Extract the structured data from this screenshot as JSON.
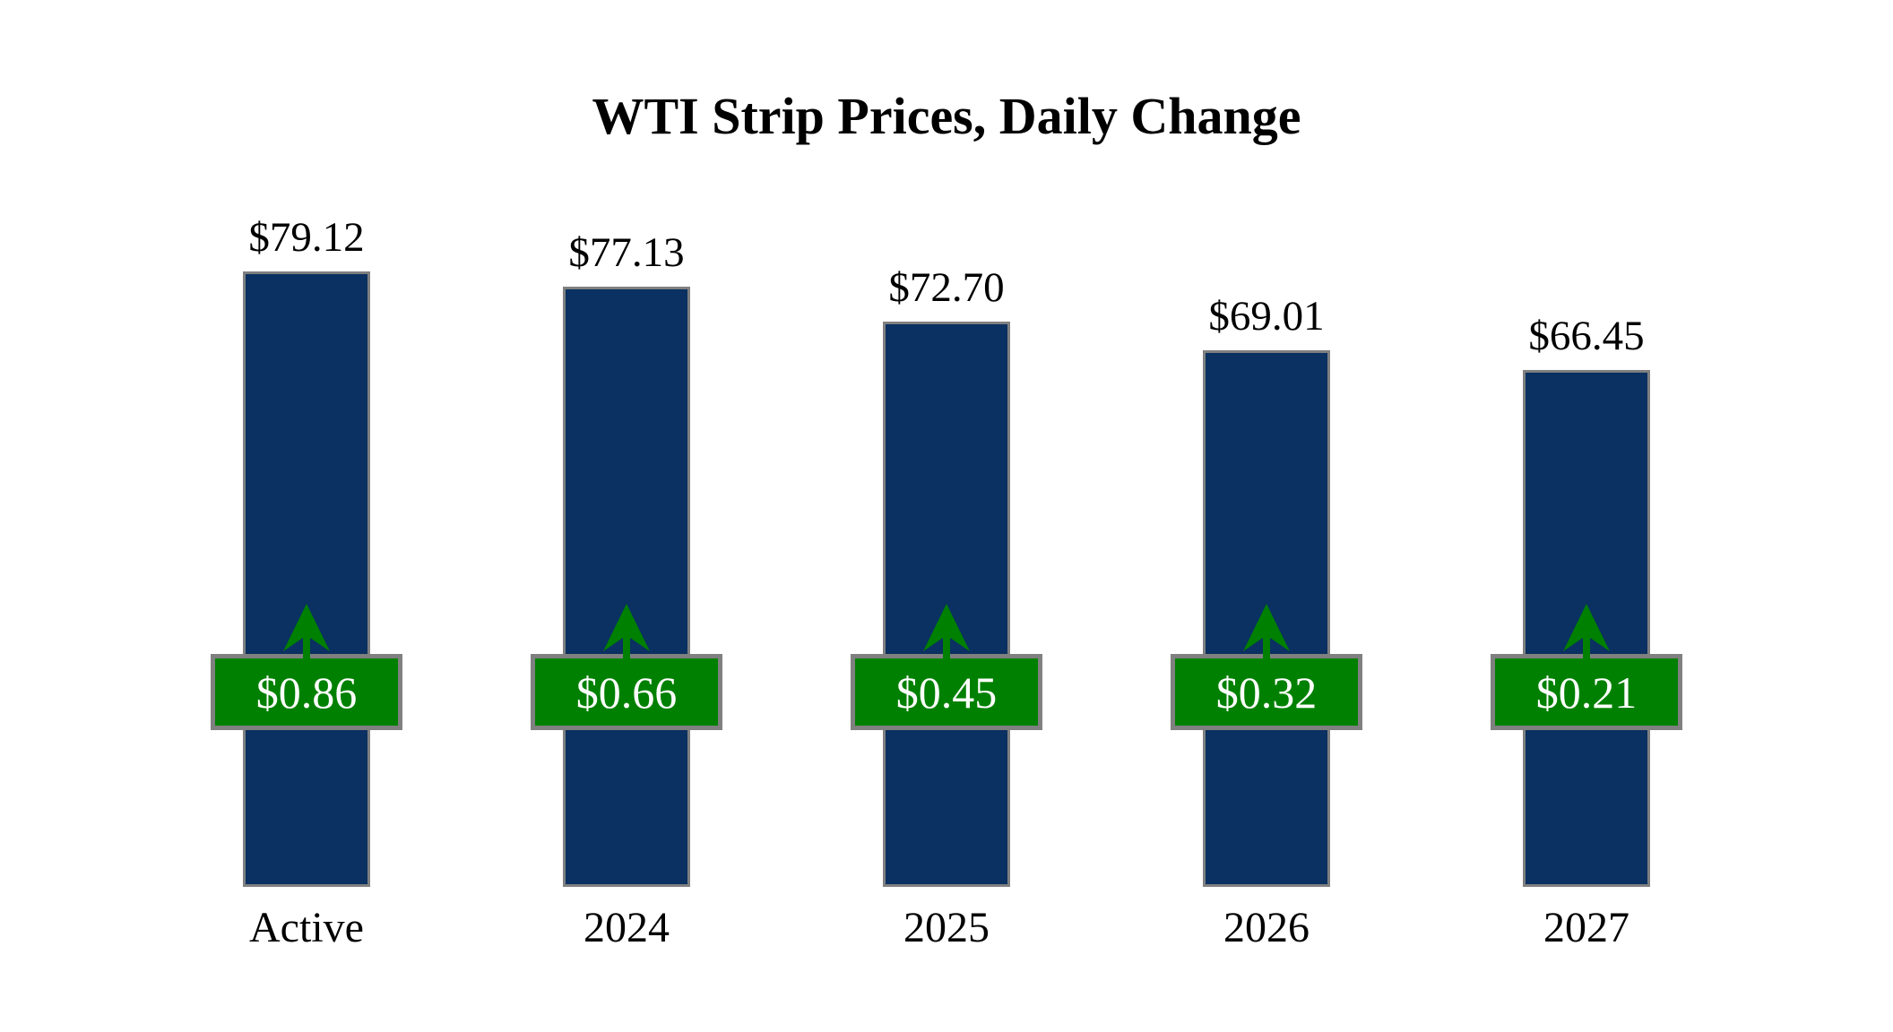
{
  "title": "WTI Strip Prices, Daily Change",
  "colors": {
    "background": "#FFFFFF",
    "bar_fill": "#0A3161",
    "bar_border": "#808080",
    "badge_fill": "#008000",
    "badge_border": "#808080",
    "badge_text": "#FFFFFF",
    "arrow": "#008000",
    "label_text": "#000000"
  },
  "chart_data": {
    "type": "bar",
    "title": "WTI Strip Prices, Daily Change",
    "categories": [
      "Active",
      "2024",
      "2025",
      "2026",
      "2027"
    ],
    "series": [
      {
        "name": "strip_price_usd_per_bbl",
        "values": [
          79.12,
          77.13,
          72.7,
          69.01,
          66.45
        ]
      },
      {
        "name": "daily_change_usd",
        "values": [
          0.86,
          0.66,
          0.45,
          0.32,
          0.21
        ]
      }
    ],
    "price_labels": [
      "$79.12",
      "$77.13",
      "$72.70",
      "$69.01",
      "$66.45"
    ],
    "change_labels": [
      "$0.86",
      "$0.66",
      "$0.45",
      "$0.32",
      "$0.21"
    ],
    "change_direction": [
      "up",
      "up",
      "up",
      "up",
      "up"
    ],
    "xlabel": "",
    "ylabel": "",
    "ylim": [
      0,
      79.12
    ],
    "grid": false,
    "legend": false,
    "bar_baseline": "zero"
  }
}
